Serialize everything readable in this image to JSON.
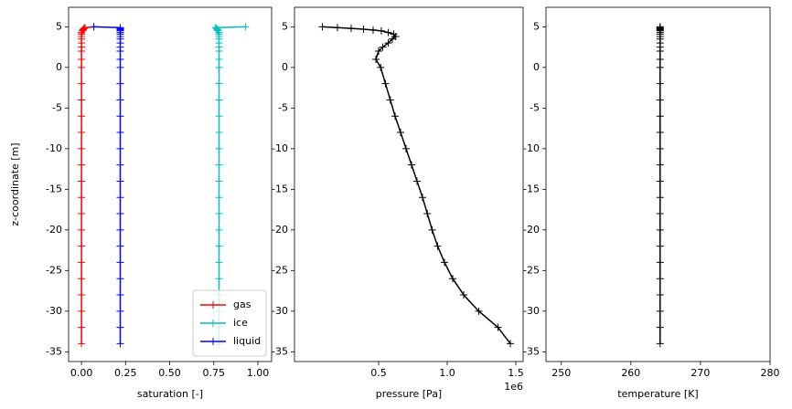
{
  "chart_data": [
    {
      "type": "line",
      "xlabel": "saturation [-]",
      "ylabel": "z-coordinate [m]",
      "legend": "lower right",
      "y": [
        -34,
        -32,
        -30,
        -28,
        -26,
        -24,
        -22,
        -20,
        -18,
        -16,
        -14,
        -12,
        -10,
        -8,
        -6,
        -4,
        -2,
        0,
        1,
        2,
        2.5,
        3,
        3.5,
        3.8,
        4.1,
        4.3,
        4.5,
        4.6,
        4.7,
        4.8,
        4.9,
        5
      ],
      "series": [
        {
          "name": "gas",
          "color": "#ff0000",
          "values": [
            0,
            0,
            0,
            0,
            0,
            0,
            0,
            0,
            0,
            0,
            0,
            0,
            0,
            0,
            0,
            0,
            0,
            0,
            0,
            0,
            0,
            0,
            0,
            0,
            0,
            0,
            0.005,
            0.01,
            0.01,
            0.015,
            0.02,
            0.07
          ]
        },
        {
          "name": "ice",
          "color": "#00bfbf",
          "values": [
            0.78,
            0.78,
            0.78,
            0.78,
            0.78,
            0.78,
            0.78,
            0.78,
            0.78,
            0.78,
            0.78,
            0.78,
            0.78,
            0.78,
            0.78,
            0.78,
            0.78,
            0.78,
            0.78,
            0.78,
            0.78,
            0.78,
            0.78,
            0.78,
            0.78,
            0.78,
            0.775,
            0.77,
            0.77,
            0.765,
            0.76,
            0.93
          ]
        },
        {
          "name": "liquid",
          "color": "#0000ff",
          "values": [
            0.22,
            0.22,
            0.22,
            0.22,
            0.22,
            0.22,
            0.22,
            0.22,
            0.22,
            0.22,
            0.22,
            0.22,
            0.22,
            0.22,
            0.22,
            0.22,
            0.22,
            0.22,
            0.22,
            0.22,
            0.22,
            0.22,
            0.22,
            0.22,
            0.22,
            0.22,
            0.22,
            0.22,
            0.22,
            0.22,
            0.22,
            0.07
          ]
        }
      ],
      "xlim": [
        -0.073,
        1.078
      ],
      "ylim": [
        -36.2,
        7.4
      ],
      "xticks": [
        {
          "value": 0,
          "label": "0.00"
        },
        {
          "value": 0.25,
          "label": "0.25"
        },
        {
          "value": 0.5,
          "label": "0.50"
        },
        {
          "value": 0.75,
          "label": "0.75"
        },
        {
          "value": 1,
          "label": "1.00"
        }
      ],
      "yticks": [
        -35,
        -30,
        -25,
        -20,
        -15,
        -10,
        -5,
        0,
        5
      ]
    },
    {
      "type": "line",
      "xlabel": "pressure [Pa]",
      "offset_label": "1e6",
      "y": [
        -34,
        -32,
        -30,
        -28,
        -26,
        -24,
        -22,
        -20,
        -18,
        -16,
        -14,
        -12,
        -10,
        -8,
        -6,
        -4,
        -2,
        0,
        1,
        2,
        2.5,
        3,
        3.5,
        3.8,
        4.1,
        4.3,
        4.5,
        4.6,
        4.7,
        4.8,
        4.9,
        5
      ],
      "series": [
        {
          "color": "#000000",
          "values": [
            1460000,
            1370000,
            1230000,
            1120000,
            1040000,
            980000,
            930000,
            890000,
            855000,
            820000,
            780000,
            740000,
            700000,
            660000,
            620000,
            585000,
            550000,
            515000,
            480000,
            500000,
            530000,
            570000,
            600000,
            625000,
            610000,
            570000,
            520000,
            460000,
            390000,
            300000,
            200000,
            90000
          ]
        }
      ],
      "xlim": [
        -113000,
        1553000
      ],
      "ylim": [
        -36.2,
        7.4
      ],
      "xticks": [
        {
          "value": 500000,
          "label": "0.5"
        },
        {
          "value": 1000000,
          "label": "1.0"
        },
        {
          "value": 1500000,
          "label": "1.5"
        }
      ],
      "yticks": [
        -35,
        -30,
        -25,
        -20,
        -15,
        -10,
        -5,
        0,
        5
      ]
    },
    {
      "type": "line",
      "xlabel": "temperature [K]",
      "y": [
        -34,
        -32,
        -30,
        -28,
        -26,
        -24,
        -22,
        -20,
        -18,
        -16,
        -14,
        -12,
        -10,
        -8,
        -6,
        -4,
        -2,
        0,
        1,
        2,
        2.5,
        3,
        3.5,
        3.8,
        4.1,
        4.3,
        4.5,
        4.6,
        4.7,
        4.8,
        4.9,
        5
      ],
      "series": [
        {
          "color": "#000000",
          "values": [
            264.2,
            264.2,
            264.2,
            264.2,
            264.2,
            264.2,
            264.2,
            264.2,
            264.2,
            264.2,
            264.2,
            264.2,
            264.2,
            264.2,
            264.2,
            264.2,
            264.2,
            264.2,
            264.2,
            264.2,
            264.2,
            264.2,
            264.2,
            264.2,
            264.2,
            264.2,
            264.2,
            264.2,
            264.2,
            264.2,
            264.2,
            264.2
          ]
        }
      ],
      "xlim": [
        247.8,
        280
      ],
      "ylim": [
        -36.2,
        7.4
      ],
      "xticks": [
        250,
        260,
        270,
        280
      ],
      "yticks": [
        -35,
        -30,
        -25,
        -20,
        -15,
        -10,
        -5,
        0,
        5
      ]
    }
  ]
}
